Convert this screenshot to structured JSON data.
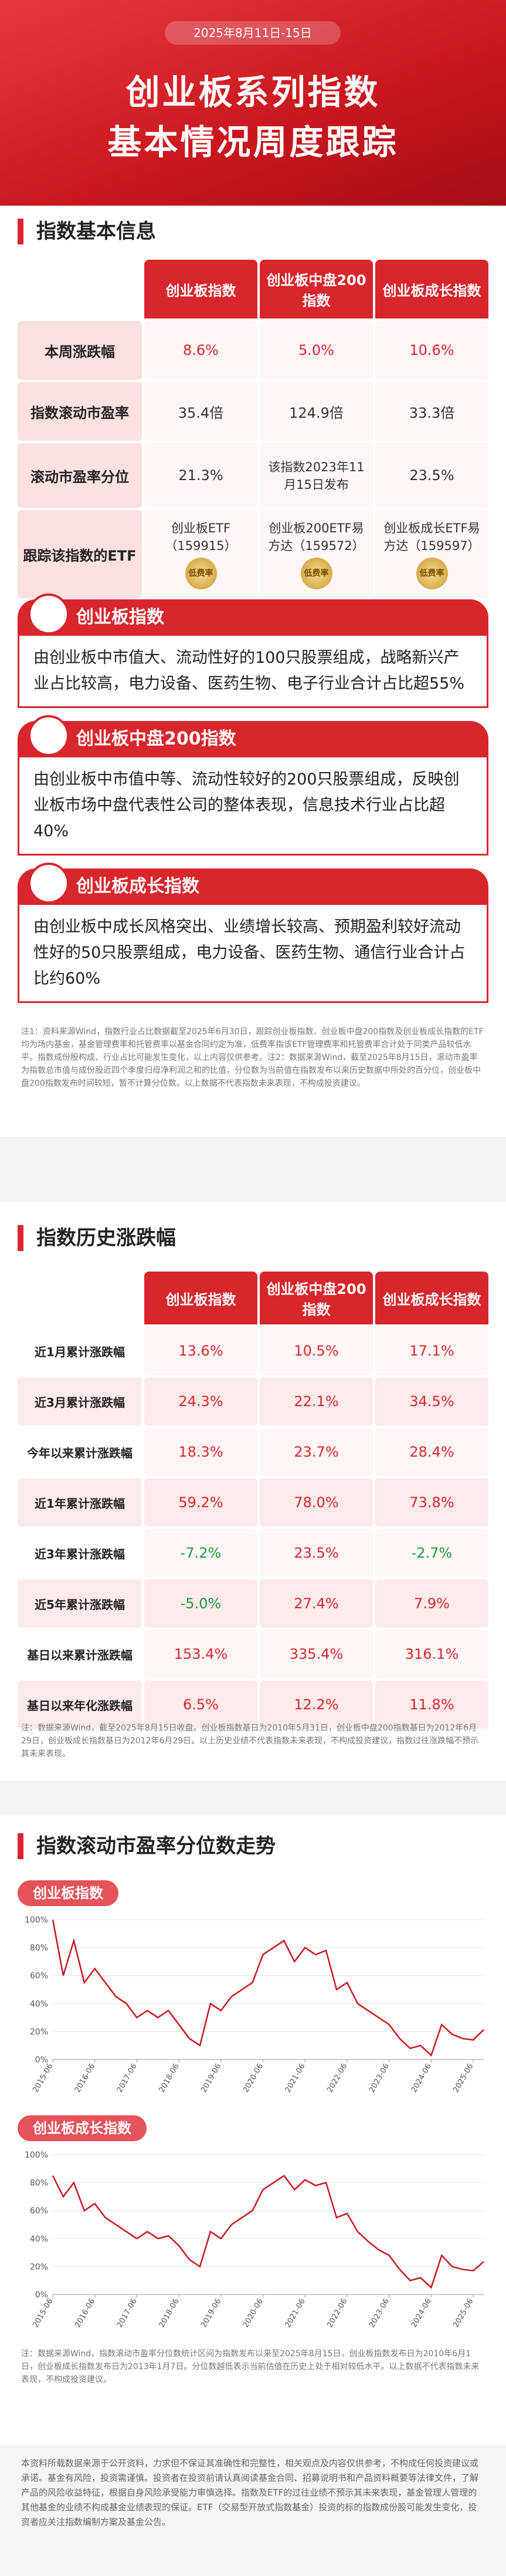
{
  "header": {
    "date": "2025年8月11日-15日",
    "title_line1": "创业板系列指数",
    "title_line2": "基本情况周度跟踪"
  },
  "basic_info": {
    "title": "指数基本信息",
    "columns": [
      "创业板指数",
      "创业板中盘200指数",
      "创业板成长指数"
    ],
    "rows": [
      {
        "label": "本周涨跌幅",
        "cells": [
          "8.6%",
          "5.0%",
          "10.6%"
        ]
      },
      {
        "label": "指数滚动市盈率",
        "cells": [
          "35.4倍",
          "124.9倍",
          "33.3倍"
        ]
      },
      {
        "label": "滚动市盈率分位",
        "cells": [
          "21.3%",
          "该指数2023年11月15日发布",
          "23.5%"
        ]
      },
      {
        "label": "跟踪该指数的ETF",
        "cells": [
          "创业板ETF（159915）",
          "创业板200ETF易方达（159572）",
          "创业板成长ETF易方达（159597）"
        ]
      }
    ],
    "badge": "低费率"
  },
  "cards": [
    {
      "title": "创业板指数",
      "text": "由创业板中市值大、流动性好的100只股票组成，战略新兴产业占比较高，电力设备、医药生物、电子行业合计占比超55%"
    },
    {
      "title": "创业板中盘200指数",
      "text": "由创业板中市值中等、流动性较好的200只股票组成，反映创业板市场中盘代表性公司的整体表现，信息技术行业占比超40%"
    },
    {
      "title": "创业板成长指数",
      "text": "由创业板中成长风格突出、业绩增长较高、预期盈利较好流动性好的50只股票组成，电力设备、医药生物、通信行业合计占比约60%"
    }
  ],
  "notes_1": "注1：资料来源Wind，指数行业占比数据截至2025年6月30日，跟踪创业板指数、创业板中盘200指数及创业板成长指数的ETF均为场内基金，基金管理费率和托管费率以基金合同约定为准，低费率指该ETF管理费率和托管费率合计处于同类产品较低水平。指数成份股构成、行业占比可能发生变化，以上内容仅供参考。注2：数据来源Wind，截至2025年8月15日，滚动市盈率为指数总市值与成份股近四个季度归母净利润之和的比值，分位数为当前值在指数发布以来历史数据中所处的百分位，创业板中盘200指数发布时间较短，暂不计算分位数。以上数据不代表指数未来表现，不构成投资建议。",
  "history": {
    "title": "指数历史涨跌幅",
    "columns": [
      "创业板指数",
      "创业板中盘200指数",
      "创业板成长指数"
    ],
    "rows": [
      {
        "label": "近1月累计涨跌幅",
        "cells": [
          "13.6%",
          "10.5%",
          "17.1%"
        ]
      },
      {
        "label": "近3月累计涨跌幅",
        "cells": [
          "24.3%",
          "22.1%",
          "34.5%"
        ]
      },
      {
        "label": "今年以来累计涨跌幅",
        "cells": [
          "18.3%",
          "23.7%",
          "28.4%"
        ]
      },
      {
        "label": "近1年累计涨跌幅",
        "cells": [
          "59.2%",
          "78.0%",
          "73.8%"
        ]
      },
      {
        "label": "近3年累计涨跌幅",
        "cells": [
          "-7.2%",
          "23.5%",
          "-2.7%"
        ]
      },
      {
        "label": "近5年累计涨跌幅",
        "cells": [
          "-5.0%",
          "27.4%",
          "7.9%"
        ]
      },
      {
        "label": "基日以来累计涨跌幅",
        "cells": [
          "153.4%",
          "335.4%",
          "316.1%"
        ]
      },
      {
        "label": "基日以来年化涨跌幅",
        "cells": [
          "6.5%",
          "12.2%",
          "11.8%"
        ]
      }
    ]
  },
  "notes_2": "注：数据来源Wind，截至2025年8月15日收盘。创业板指数基日为2010年5月31日，创业板中盘200指数基日为2012年6月29日，创业板成长指数基日为2012年6月29日。以上历史业绩不代表指数未来表现，不构成投资建议，指数过往涨跌幅不预示其未来表现。",
  "pe_section": {
    "title": "指数滚动市盈率分位数走势"
  },
  "chart_data": [
    {
      "type": "line",
      "title": "创业板指数",
      "x": [
        "2015-06",
        "2015-09",
        "2015-12",
        "2016-03",
        "2016-06",
        "2016-09",
        "2016-12",
        "2017-03",
        "2017-06",
        "2017-09",
        "2017-12",
        "2018-03",
        "2018-06",
        "2018-09",
        "2018-12",
        "2019-03",
        "2019-06",
        "2019-09",
        "2019-12",
        "2020-03",
        "2020-06",
        "2020-09",
        "2020-12",
        "2021-03",
        "2021-06",
        "2021-09",
        "2021-12",
        "2022-03",
        "2022-06",
        "2022-09",
        "2022-12",
        "2023-03",
        "2023-06",
        "2023-09",
        "2023-12",
        "2024-03",
        "2024-06",
        "2024-09",
        "2024-12",
        "2025-03",
        "2025-06",
        "2025-08"
      ],
      "values": [
        100,
        60,
        85,
        55,
        65,
        55,
        45,
        40,
        30,
        35,
        30,
        35,
        25,
        15,
        10,
        40,
        35,
        45,
        50,
        55,
        75,
        80,
        85,
        70,
        80,
        75,
        78,
        50,
        55,
        40,
        35,
        30,
        25,
        15,
        8,
        10,
        3,
        25,
        18,
        15,
        14,
        21.3
      ],
      "color": "#c8161d",
      "ylim": [
        0,
        100
      ],
      "yticks": [
        {
          "value": 0,
          "label": "0%"
        },
        {
          "value": 20,
          "label": "20%"
        },
        {
          "value": 40,
          "label": "40%"
        },
        {
          "value": 60,
          "label": "60%"
        },
        {
          "value": 80,
          "label": "80%"
        },
        {
          "value": 100,
          "label": "100%"
        }
      ],
      "xticks": [
        "2015-06",
        "2016-06",
        "2017-06",
        "2018-06",
        "2019-06",
        "2020-06",
        "2021-06",
        "2022-06",
        "2023-06",
        "2024-06",
        "2025-06"
      ]
    },
    {
      "type": "line",
      "title": "创业板成长指数",
      "x": [
        "2015-06",
        "2015-09",
        "2015-12",
        "2016-03",
        "2016-06",
        "2016-09",
        "2016-12",
        "2017-03",
        "2017-06",
        "2017-09",
        "2017-12",
        "2018-03",
        "2018-06",
        "2018-09",
        "2018-12",
        "2019-03",
        "2019-06",
        "2019-09",
        "2019-12",
        "2020-03",
        "2020-06",
        "2020-09",
        "2020-12",
        "2021-03",
        "2021-06",
        "2021-09",
        "2021-12",
        "2022-03",
        "2022-06",
        "2022-09",
        "2022-12",
        "2023-03",
        "2023-06",
        "2023-09",
        "2023-12",
        "2024-03",
        "2024-06",
        "2024-09",
        "2024-12",
        "2025-03",
        "2025-06",
        "2025-08"
      ],
      "values": [
        85,
        70,
        80,
        60,
        65,
        55,
        50,
        45,
        40,
        45,
        40,
        42,
        35,
        25,
        20,
        45,
        40,
        50,
        55,
        60,
        75,
        80,
        85,
        75,
        82,
        78,
        80,
        55,
        58,
        45,
        38,
        32,
        28,
        18,
        10,
        12,
        5,
        28,
        20,
        18,
        17,
        23.5
      ],
      "color": "#c8161d",
      "ylim": [
        0,
        100
      ],
      "yticks": [
        {
          "value": 0,
          "label": "0%"
        },
        {
          "value": 20,
          "label": "20%"
        },
        {
          "value": 40,
          "label": "40%"
        },
        {
          "value": 60,
          "label": "60%"
        },
        {
          "value": 80,
          "label": "80%"
        },
        {
          "value": 100,
          "label": "100%"
        }
      ],
      "xticks": [
        "2015-06",
        "2016-06",
        "2017-06",
        "2018-06",
        "2019-06",
        "2020-06",
        "2021-06",
        "2022-06",
        "2023-06",
        "2024-06",
        "2025-06"
      ]
    }
  ],
  "notes_3": "注：数据来源Wind，指数滚动市盈率分位数统计区间为指数发布以来至2025年8月15日，创业板指数发布日为2010年6月1日，创业板成长指数发布日为2013年1月7日。分位数越低表示当前估值在历史上处于相对较低水平。以上数据不代表指数未来表现，不构成投资建议。",
  "disclaimer": "本资料所载数据来源于公开资料，力求但不保证其准确性和完整性，相关观点及内容仅供参考，不构成任何投资建议或承诺。基金有风险，投资需谨慎。投资者在投资前请认真阅读基金合同、招募说明书和产品资料概要等法律文件，了解产品的风险收益特征，根据自身风险承受能力审慎选择。指数及ETF的过往业绩不预示其未来表现，基金管理人管理的其他基金的业绩不构成基金业绩表现的保证。ETF（交易型开放式指数基金）投资的标的指数成份股可能发生变化，投资者应关注指数编制方案及基金公告。"
}
